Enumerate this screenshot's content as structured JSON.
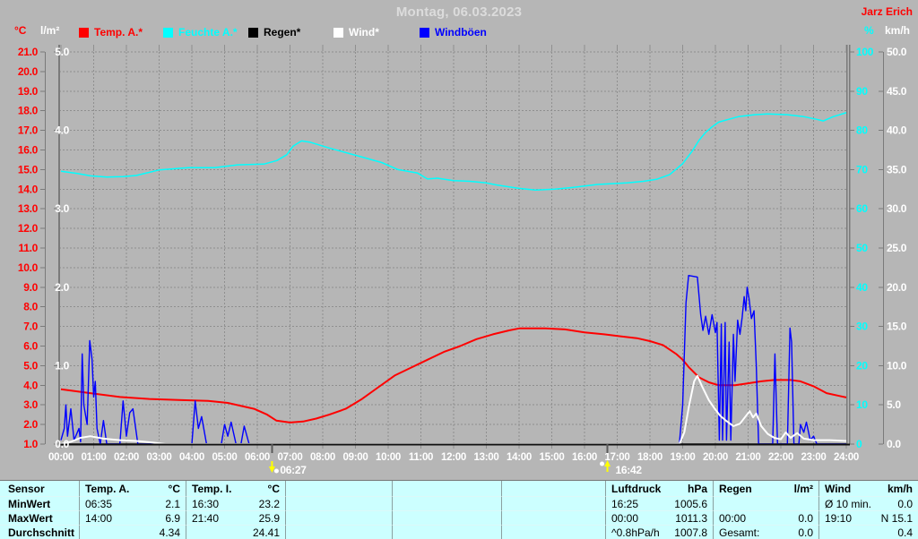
{
  "header": {
    "title": "Montag, 06.03.2023",
    "station": "Jarz Erich"
  },
  "legend": [
    {
      "label": "Temp. A.*",
      "color": "#ff0000"
    },
    {
      "label": "Feuchte A.*",
      "color": "#00ffff"
    },
    {
      "label": "Regen*",
      "color": "#000000"
    },
    {
      "label": "Wind*",
      "color": "#ffffff"
    },
    {
      "label": "Windböen",
      "color": "#0000ff"
    }
  ],
  "chart_data": {
    "type": "line",
    "title": "Montag, 06.03.2023",
    "grid": true,
    "x_axis": {
      "labels": [
        "00:00",
        "01:00",
        "02:00",
        "03:00",
        "04:00",
        "05:00",
        "06:00",
        "07:00",
        "08:00",
        "09:00",
        "10:00",
        "11:00",
        "12:00",
        "13:00",
        "14:00",
        "15:00",
        "16:00",
        "17:00",
        "18:00",
        "19:00",
        "20:00",
        "21:00",
        "22:00",
        "23:00",
        "24:00"
      ],
      "range_hours": [
        0,
        24
      ]
    },
    "axes": {
      "temp": {
        "unit": "°C",
        "color": "#ff0000",
        "min": 1,
        "max": 21,
        "ticks": [
          "21.0",
          "20.0",
          "19.0",
          "18.0",
          "17.0",
          "16.0",
          "15.0",
          "14.0",
          "13.0",
          "12.0",
          "11.0",
          "10.0",
          "9.0",
          "8.0",
          "7.0",
          "6.0",
          "5.0",
          "4.0",
          "3.0",
          "2.0",
          "1.0"
        ]
      },
      "rain": {
        "unit": "l/m²",
        "color": "#ffffff",
        "min": 0,
        "max": 5,
        "ticks": [
          "5.0",
          "4.0",
          "3.0",
          "2.0",
          "1.0",
          "0.0"
        ]
      },
      "humidity": {
        "unit": "%",
        "color": "#00ffff",
        "min": 0,
        "max": 100,
        "ticks": [
          "100",
          "90",
          "80",
          "70",
          "60",
          "50",
          "40",
          "30",
          "20",
          "10",
          "0"
        ]
      },
      "wind": {
        "unit": "km/h",
        "color": "#ffffff",
        "min": 0,
        "max": 50,
        "ticks": [
          "50.0",
          "45.0",
          "40.0",
          "35.0",
          "30.0",
          "25.0",
          "20.0",
          "15.0",
          "10.0",
          "5.0",
          "0.0"
        ]
      }
    },
    "series": [
      {
        "name": "Feuchte A.*",
        "axis": "humidity",
        "color": "#00ffff",
        "width": 1.5,
        "points": [
          [
            0,
            69.6
          ],
          [
            0.5,
            69
          ],
          [
            0.9,
            68.4
          ],
          [
            1.4,
            68.1
          ],
          [
            1.9,
            68.2
          ],
          [
            2.3,
            68.5
          ],
          [
            3,
            69.9
          ],
          [
            3.9,
            70.5
          ],
          [
            4.7,
            70.5
          ],
          [
            5.4,
            71.2
          ],
          [
            6.2,
            71.4
          ],
          [
            6.6,
            72.3
          ],
          [
            6.9,
            73.8
          ],
          [
            7.1,
            76
          ],
          [
            7.35,
            77.3
          ],
          [
            7.6,
            77
          ],
          [
            8.2,
            75.5
          ],
          [
            9.2,
            73.2
          ],
          [
            9.8,
            71.8
          ],
          [
            10.3,
            70
          ],
          [
            10.9,
            69.1
          ],
          [
            11.2,
            67.6
          ],
          [
            11.5,
            67.8
          ],
          [
            12,
            67.2
          ],
          [
            12.5,
            67
          ],
          [
            13,
            66.6
          ],
          [
            13.3,
            66.1
          ],
          [
            13.7,
            65.6
          ],
          [
            14,
            65.2
          ],
          [
            14.5,
            64.8
          ],
          [
            15.1,
            65
          ],
          [
            15.6,
            65.4
          ],
          [
            16.4,
            66.2
          ],
          [
            17.3,
            66.6
          ],
          [
            17.8,
            67
          ],
          [
            18.2,
            67.5
          ],
          [
            18.6,
            68.7
          ],
          [
            19,
            71.5
          ],
          [
            19.3,
            74.8
          ],
          [
            19.5,
            77.5
          ],
          [
            19.7,
            79.5
          ],
          [
            19.9,
            80.9
          ],
          [
            20.1,
            82.1
          ],
          [
            20.4,
            82.8
          ],
          [
            20.7,
            83.5
          ],
          [
            21.2,
            84
          ],
          [
            21.6,
            84.2
          ],
          [
            22.2,
            84
          ],
          [
            22.7,
            83.5
          ],
          [
            23.1,
            82.8
          ],
          [
            23.3,
            82.4
          ],
          [
            23.6,
            83.5
          ],
          [
            24,
            84.5
          ]
        ]
      },
      {
        "name": "Regen*",
        "axis": "rain",
        "color": "#000000",
        "width": 1.5,
        "points": [
          [
            0,
            0
          ],
          [
            24,
            0
          ]
        ]
      },
      {
        "name": "Temp. A.*",
        "axis": "temp",
        "color": "#ff0000",
        "width": 2,
        "points": [
          [
            0,
            3.8
          ],
          [
            0.9,
            3.6
          ],
          [
            1.8,
            3.4
          ],
          [
            2.7,
            3.3
          ],
          [
            3.6,
            3.25
          ],
          [
            4.5,
            3.2
          ],
          [
            5.1,
            3.1
          ],
          [
            5.9,
            2.8
          ],
          [
            6.3,
            2.5
          ],
          [
            6.58,
            2.2
          ],
          [
            7,
            2.1
          ],
          [
            7.4,
            2.15
          ],
          [
            7.8,
            2.3
          ],
          [
            8.2,
            2.5
          ],
          [
            8.7,
            2.8
          ],
          [
            9.2,
            3.3
          ],
          [
            9.7,
            3.9
          ],
          [
            10.2,
            4.5
          ],
          [
            10.7,
            4.9
          ],
          [
            11.2,
            5.3
          ],
          [
            11.7,
            5.7
          ],
          [
            12.2,
            6
          ],
          [
            12.7,
            6.35
          ],
          [
            13.2,
            6.6
          ],
          [
            13.7,
            6.8
          ],
          [
            14,
            6.9
          ],
          [
            14.8,
            6.9
          ],
          [
            15.4,
            6.85
          ],
          [
            16,
            6.7
          ],
          [
            16.6,
            6.6
          ],
          [
            17.1,
            6.5
          ],
          [
            17.6,
            6.4
          ],
          [
            18,
            6.25
          ],
          [
            18.4,
            6.05
          ],
          [
            18.8,
            5.6
          ],
          [
            19,
            5.3
          ],
          [
            19.2,
            4.9
          ],
          [
            19.5,
            4.4
          ],
          [
            19.8,
            4.15
          ],
          [
            20.1,
            4
          ],
          [
            20.6,
            4
          ],
          [
            21,
            4.1
          ],
          [
            21.4,
            4.2
          ],
          [
            21.8,
            4.27
          ],
          [
            22.3,
            4.27
          ],
          [
            22.6,
            4.2
          ],
          [
            23,
            3.95
          ],
          [
            23.4,
            3.6
          ],
          [
            23.8,
            3.45
          ],
          [
            24,
            3.38
          ]
        ]
      },
      {
        "name": "Windböen",
        "axis": "wind",
        "color": "#0000ff",
        "width": 1.4,
        "points": [
          [
            0,
            0.5
          ],
          [
            0.1,
            2
          ],
          [
            0.15,
            5
          ],
          [
            0.2,
            1
          ],
          [
            0.3,
            4.5
          ],
          [
            0.4,
            0.5
          ],
          [
            0.55,
            2
          ],
          [
            0.6,
            0.3
          ],
          [
            0.65,
            11.5
          ],
          [
            0.7,
            5
          ],
          [
            0.8,
            2.5
          ],
          [
            0.88,
            13.2
          ],
          [
            0.95,
            10.8
          ],
          [
            1,
            6
          ],
          [
            1.05,
            8
          ],
          [
            1.1,
            2
          ],
          [
            1.2,
            0
          ],
          [
            1.3,
            3
          ],
          [
            1.4,
            0
          ],
          [
            1.8,
            0
          ],
          [
            1.9,
            5.5
          ],
          [
            2,
            1
          ],
          [
            2.1,
            4
          ],
          [
            2.2,
            4.5
          ],
          [
            2.35,
            0
          ],
          [
            4,
            0
          ],
          [
            4.1,
            5.5
          ],
          [
            4.2,
            2
          ],
          [
            4.3,
            3.5
          ],
          [
            4.45,
            0
          ],
          [
            4.9,
            0
          ],
          [
            5,
            2.5
          ],
          [
            5.1,
            1
          ],
          [
            5.2,
            2.8
          ],
          [
            5.35,
            0
          ],
          [
            5.5,
            0
          ],
          [
            5.6,
            2.3
          ],
          [
            5.75,
            0
          ],
          [
            18.9,
            0
          ],
          [
            19,
            5
          ],
          [
            19.1,
            18
          ],
          [
            19.18,
            21.5
          ],
          [
            19.45,
            21.3
          ],
          [
            19.55,
            16.5
          ],
          [
            19.62,
            14.5
          ],
          [
            19.7,
            16.3
          ],
          [
            19.8,
            14
          ],
          [
            19.9,
            16.5
          ],
          [
            20,
            14.2
          ],
          [
            20.05,
            15.5
          ],
          [
            20.12,
            0.5
          ],
          [
            20.18,
            15.3
          ],
          [
            20.22,
            0.5
          ],
          [
            20.3,
            15.5
          ],
          [
            20.34,
            0.5
          ],
          [
            20.42,
            13
          ],
          [
            20.47,
            0.5
          ],
          [
            20.55,
            14
          ],
          [
            20.6,
            8
          ],
          [
            20.68,
            15.8
          ],
          [
            20.75,
            14
          ],
          [
            20.82,
            16.2
          ],
          [
            20.88,
            18.8
          ],
          [
            20.93,
            17
          ],
          [
            20.97,
            20
          ],
          [
            21.03,
            18.5
          ],
          [
            21.1,
            16
          ],
          [
            21.18,
            17
          ],
          [
            21.25,
            10
          ],
          [
            21.32,
            0
          ],
          [
            21.75,
            0
          ],
          [
            21.82,
            11.5
          ],
          [
            21.9,
            0
          ],
          [
            22.2,
            0
          ],
          [
            22.28,
            14.8
          ],
          [
            22.33,
            13
          ],
          [
            22.4,
            0
          ],
          [
            22.55,
            0
          ],
          [
            22.6,
            2.5
          ],
          [
            22.7,
            1.5
          ],
          [
            22.78,
            2.8
          ],
          [
            22.9,
            0.5
          ],
          [
            23,
            1
          ],
          [
            23.1,
            0
          ],
          [
            24,
            0
          ]
        ]
      },
      {
        "name": "Wind*",
        "axis": "wind",
        "color": "#ffffff",
        "width": 2,
        "points": [
          [
            0,
            0
          ],
          [
            0.3,
            0.3
          ],
          [
            0.6,
            0.8
          ],
          [
            0.9,
            1
          ],
          [
            1.3,
            0.7
          ],
          [
            1.8,
            0.5
          ],
          [
            2.3,
            0.4
          ],
          [
            2.8,
            0.2
          ],
          [
            3.2,
            0
          ],
          [
            18.9,
            0
          ],
          [
            19.05,
            1.5
          ],
          [
            19.2,
            5
          ],
          [
            19.35,
            8
          ],
          [
            19.45,
            8.7
          ],
          [
            19.6,
            7.3
          ],
          [
            19.8,
            5.6
          ],
          [
            20,
            4.4
          ],
          [
            20.15,
            3.6
          ],
          [
            20.35,
            2.9
          ],
          [
            20.55,
            2.3
          ],
          [
            20.75,
            2.6
          ],
          [
            20.9,
            3.4
          ],
          [
            21.05,
            4.2
          ],
          [
            21.15,
            3.4
          ],
          [
            21.25,
            3.9
          ],
          [
            21.4,
            2.3
          ],
          [
            21.6,
            1.3
          ],
          [
            21.8,
            0.8
          ],
          [
            22,
            0.6
          ],
          [
            22.15,
            1.5
          ],
          [
            22.3,
            0.8
          ],
          [
            22.5,
            1.4
          ],
          [
            22.7,
            0.7
          ],
          [
            23,
            0.5
          ],
          [
            23.5,
            0.5
          ],
          [
            24,
            0.4
          ]
        ]
      }
    ],
    "sun_markers": [
      {
        "label": "06:27",
        "hour": 6.45,
        "type": "sunrise",
        "color": "#ffff00"
      },
      {
        "label": "16:42",
        "hour": 16.7,
        "type": "sunset",
        "color": "#ffff00"
      }
    ]
  },
  "table": {
    "row_labels": [
      "Sensor",
      "MinWert",
      "MaxWert",
      "Durchschnitt"
    ],
    "columns": [
      {
        "name": "Temp. A.",
        "unit": "°C",
        "rows": [
          [
            "06:35",
            "2.1"
          ],
          [
            "14:00",
            "6.9"
          ],
          [
            "",
            "4.34"
          ]
        ]
      },
      {
        "name": "Temp. I.",
        "unit": "°C",
        "rows": [
          [
            "16:30",
            "23.2"
          ],
          [
            "21:40",
            "25.9"
          ],
          [
            "",
            "24.41"
          ]
        ]
      },
      {
        "name": "",
        "unit": "",
        "rows": [
          [
            "",
            ""
          ],
          [
            "",
            ""
          ],
          [
            "",
            ""
          ]
        ]
      },
      {
        "name": "",
        "unit": "",
        "rows": [
          [
            "",
            ""
          ],
          [
            "",
            ""
          ],
          [
            "",
            ""
          ]
        ]
      },
      {
        "name": "",
        "unit": "",
        "rows": [
          [
            "",
            ""
          ],
          [
            "",
            ""
          ],
          [
            "",
            ""
          ]
        ]
      },
      {
        "name": "Luftdruck",
        "unit": "hPa",
        "rows": [
          [
            "16:25",
            "1005.6"
          ],
          [
            "00:00",
            "1011.3"
          ],
          [
            "^0.8hPa/h",
            "1007.8"
          ]
        ]
      },
      {
        "name": "Regen",
        "unit": "l/m²",
        "rows": [
          [
            "",
            ""
          ],
          [
            "00:00",
            "0.0"
          ],
          [
            "Gesamt:",
            "0.0"
          ]
        ]
      },
      {
        "name": "Wind",
        "unit": "km/h",
        "rows": [
          [
            "Ø 10 min.",
            "0.0"
          ],
          [
            "19:10",
            "N 15.1"
          ],
          [
            "",
            "0.4"
          ]
        ]
      }
    ]
  }
}
